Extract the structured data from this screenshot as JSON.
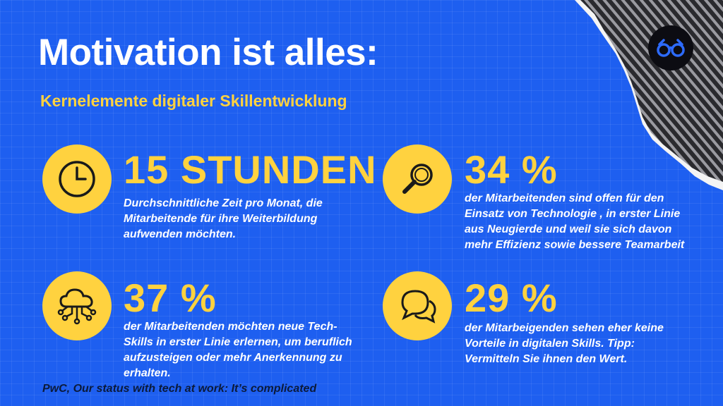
{
  "header": {
    "title": "Motivation ist alles:",
    "subtitle": "Kernelemente digitaler Skillentwicklung"
  },
  "logo": {
    "icon": "glasses-icon"
  },
  "stats": [
    {
      "icon": "clock-icon",
      "value": "15 STUNDEN",
      "description": "Durchschnittliche Zeit pro Monat, die Mitarbeitende für ihre Weiterbildung aufwenden möchten."
    },
    {
      "icon": "magnifier-icon",
      "value": "34 %",
      "description": "der Mitarbeitenden sind offen für den Einsatz von Technologie , in erster Linie aus Neugierde und weil sie sich davon mehr Effizienz sowie bessere Teamarbeit"
    },
    {
      "icon": "cloud-network-icon",
      "value": "37 %",
      "description": "der Mitarbeitenden möchten neue Tech-Skills in erster Linie erlernen, um beruflich aufzusteigen oder mehr Anerkennung zu erhalten."
    },
    {
      "icon": "chat-bubbles-icon",
      "value": "29 %",
      "description": "der Mitarbeigenden sehen eher keine Vorteile in digitalen Skills. Tipp: Vermitteln Sie ihnen den Wert."
    }
  ],
  "source": "PwC, Our status with tech at work: It’s complicated",
  "colors": {
    "background": "#1e5ff0",
    "accent": "#ffd23f",
    "text": "#ffffff"
  }
}
